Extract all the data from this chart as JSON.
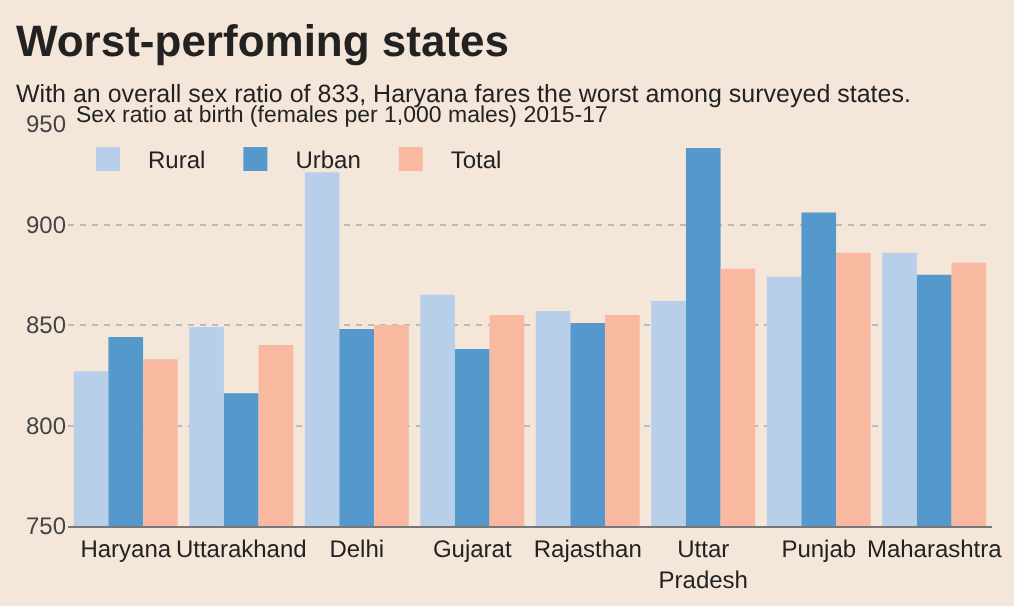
{
  "chart_data": {
    "type": "bar",
    "title": "Worst-perfoming states",
    "subtitle": "With an overall sex ratio of 833, Haryana fares the worst among surveyed states.",
    "legend_title": "Sex ratio at birth (females per 1,000 males) 2015-17",
    "categories": [
      "Haryana",
      "Uttarakhand",
      "Delhi",
      "Gujarat",
      "Rajasthan",
      "Uttar Pradesh",
      "Punjab",
      "Maharashtra"
    ],
    "series": [
      {
        "name": "Rural",
        "color": "#b8cfe9",
        "values": [
          827,
          849,
          926,
          865,
          857,
          862,
          874,
          886
        ]
      },
      {
        "name": "Urban",
        "color": "#5599cc",
        "values": [
          844,
          816,
          848,
          838,
          851,
          938,
          906,
          875
        ]
      },
      {
        "name": "Total",
        "color": "#f8b9a0",
        "values": [
          833,
          840,
          850,
          855,
          855,
          878,
          886,
          881
        ]
      }
    ],
    "ylim": [
      750,
      950
    ],
    "yticks": [
      750,
      800,
      850,
      900,
      950
    ],
    "grid": "y",
    "legend": "top left"
  }
}
